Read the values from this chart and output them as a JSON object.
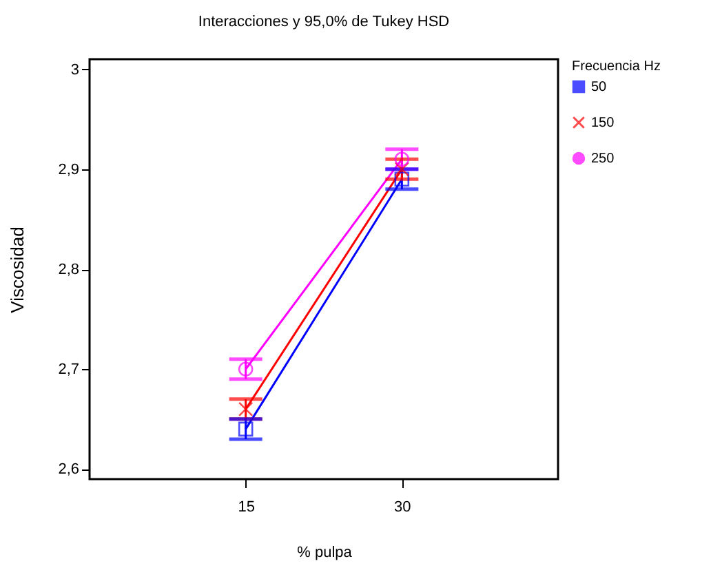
{
  "chart_data": {
    "type": "line",
    "title": "Interacciones y 95,0% de Tukey HSD",
    "xlabel": "% pulpa",
    "ylabel": "Viscosidad",
    "legend_title": "Frecuencia Hz",
    "categories": [
      "15",
      "30"
    ],
    "series": [
      {
        "name": "50",
        "color": "#0000ff",
        "marker": "square",
        "values": [
          2.64,
          2.89
        ],
        "errors": [
          0.01,
          0.01
        ]
      },
      {
        "name": "150",
        "color": "#ff0000",
        "marker": "cross",
        "values": [
          2.66,
          2.9
        ],
        "errors": [
          0.01,
          0.01
        ]
      },
      {
        "name": "250",
        "color": "#ff00ff",
        "marker": "circle",
        "values": [
          2.7,
          2.91
        ],
        "errors": [
          0.01,
          0.01
        ]
      }
    ],
    "ylim": [
      2.59,
      3.01
    ],
    "yticks": [
      {
        "value": 2.6,
        "label": "2,6"
      },
      {
        "value": 2.7,
        "label": "2,7"
      },
      {
        "value": 2.8,
        "label": "2,8"
      },
      {
        "value": 2.9,
        "label": "2,9"
      },
      {
        "value": 3,
        "label": "3"
      }
    ],
    "grid": false,
    "legend": "top right",
    "line_style": "solid"
  }
}
